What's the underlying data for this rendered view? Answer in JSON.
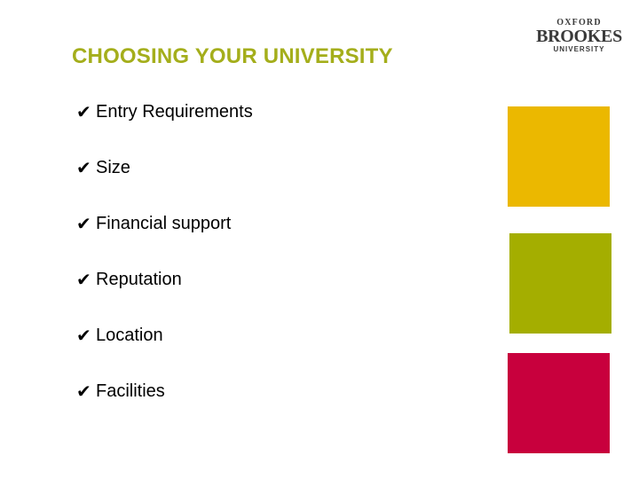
{
  "slide": {
    "title": "CHOOSING YOUR UNIVERSITY"
  },
  "logo": {
    "line1": "OXFORD",
    "line2": "BROOKES",
    "line3": "UNIVERSITY"
  },
  "checklist": {
    "check_glyph": "✔",
    "items": [
      "Entry Requirements",
      "Size",
      "Financial support",
      "Reputation",
      "Location",
      "Facilities"
    ]
  },
  "colors": {
    "title": "#a4ae1b",
    "block_yellow": "#ebb800",
    "block_green": "#a4ae00",
    "block_red": "#c8003d"
  }
}
